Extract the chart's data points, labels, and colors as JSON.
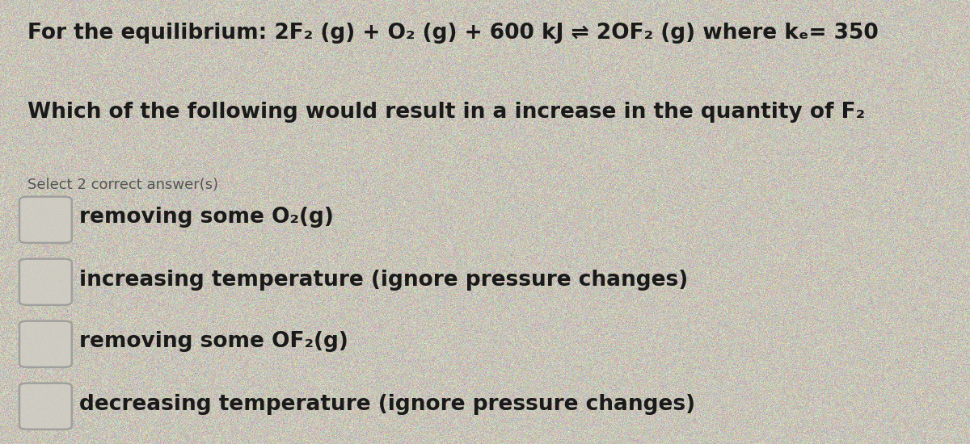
{
  "background_color": "#c8c4b8",
  "title_line": "For the equilibrium: 2F₂ (g) + O₂ (g) + 600 kJ ⇌ 2OF₂ (g) where kₑ= 350",
  "question_line": "Which of the following would result in a increase in the quantity of F₂",
  "select_line": "Select 2 correct answer(s)",
  "options": [
    "removing some O₂(g)",
    "increasing temperature (ignore pressure changes)",
    "removing some OF₂(g)",
    "decreasing temperature (ignore pressure changes)"
  ],
  "title_fontsize": 19,
  "question_fontsize": 19,
  "select_fontsize": 13,
  "option_fontsize": 19,
  "text_color": "#1a1a1a",
  "select_color": "#555555",
  "checkbox_edge_color": "#999999",
  "checkbox_face_color": "#d0cdc4",
  "noise_level": 18
}
